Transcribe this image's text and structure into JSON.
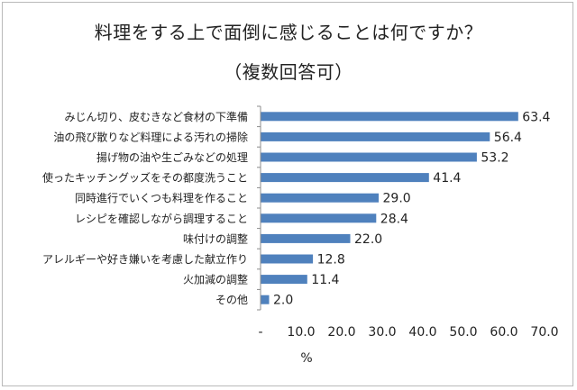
{
  "chart_data": {
    "type": "bar",
    "orientation": "horizontal",
    "title": "料理をする上で面倒に感じることは何ですか？",
    "subtitle": "（複数回答可）",
    "xlabel": "%",
    "ylabel": "",
    "categories": [
      "みじん切り、皮むきなど食材の下準備",
      "油の飛び散りなど料理による汚れの掃除",
      "揚げ物の油や生ごみなどの処理",
      "使ったキッチングッズをその都度洗うこと",
      "同時進行でいくつも料理を作ること",
      "レシピを確認しながら調理すること",
      "味付けの調整",
      "アレルギーや好き嫌いを考慮した献立作り",
      "火加減の調整",
      "その他"
    ],
    "values": [
      63.4,
      56.4,
      53.2,
      41.4,
      29.0,
      28.4,
      22.0,
      12.8,
      11.4,
      2.0
    ],
    "value_labels": [
      "63.4",
      "56.4",
      "53.2",
      "41.4",
      "29.0",
      "28.4",
      "22.0",
      "12.8",
      "11.4",
      "2.0"
    ],
    "xlim": [
      0,
      70
    ],
    "xticks": [
      "-",
      "10.0",
      "20.0",
      "30.0",
      "40.0",
      "50.0",
      "60.0",
      "70.0"
    ],
    "grid": false,
    "bar_color": "#4F81BD"
  }
}
